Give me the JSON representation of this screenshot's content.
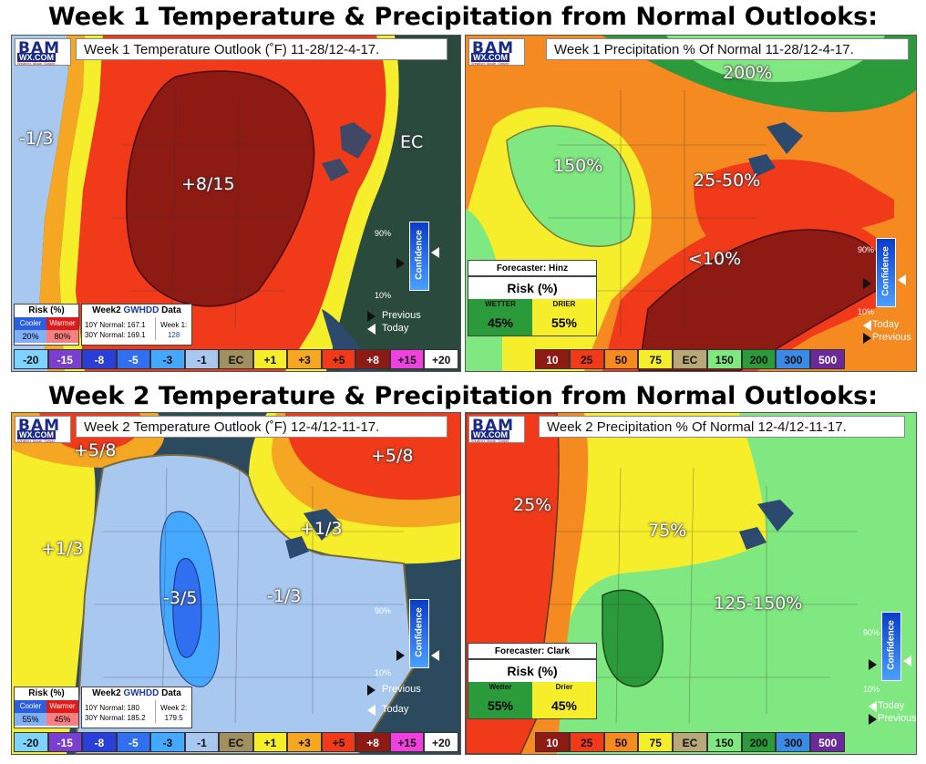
{
  "headings": {
    "week1": "Week 1 Temperature & Precipitation from Normal Outlooks:",
    "week2": "Week 2 Temperature & Precipitation from Normal Outlooks:"
  },
  "logo": {
    "bam": "BAM",
    "wx": "WX.COM",
    "tagline": "Weather. Made. Simple."
  },
  "panels": {
    "w1_temp": {
      "title": "Week 1 Temperature Outlook (˚F) 11-28/12-4-17.",
      "labels": [
        "-1/3",
        "+8/15",
        "EC"
      ],
      "risk": {
        "title": "Risk (%)",
        "cooler_label": "Cooler",
        "warmer_label": "Warmer",
        "cooler": "20%",
        "warmer": "80%"
      },
      "gwhdd": {
        "title_a": "Week2 ",
        "title_b": "GWHDD",
        "title_c": " Data",
        "normal10": "10Y Normal: 167.1",
        "normal30": "30Y Normal: 169.1",
        "week_label": "Week 1:",
        "week_value": "128"
      }
    },
    "w1_precip": {
      "title": "Week 1 Precipitation % Of Normal 11-28/12-4-17.",
      "labels": [
        "200%",
        "150%",
        "25-50%",
        "<10%"
      ],
      "forecaster": "Forecaster: Hinz",
      "risk_title": "Risk (%)",
      "wetter_label": "WETTER",
      "drier_label": "DRIER",
      "wetter": "45%",
      "drier": "55%"
    },
    "w2_temp": {
      "title": "Week 2 Temperature Outlook (˚F) 12-4/12-11-17.",
      "labels": [
        "+5/8",
        "+5/8",
        "+1/3",
        "+1/3",
        "-3/5",
        "-1/3"
      ],
      "risk": {
        "title": "Risk (%)",
        "cooler_label": "Cooler",
        "warmer_label": "Warmer",
        "cooler": "55%",
        "warmer": "45%"
      },
      "gwhdd": {
        "title_a": "Week2 ",
        "title_b": "GWHDD",
        "title_c": " Data",
        "normal10": "10Y Normal: 180",
        "normal30": "30Y Normal: 185.2",
        "week_label": "Week 2:",
        "week_value": "179.5"
      }
    },
    "w2_precip": {
      "title": "Week 2 Precipitation % Of Normal 12-4/12-11-17.",
      "labels": [
        "25%",
        "75%",
        "125-150%"
      ],
      "forecaster": "Forecaster: Clark",
      "risk_title": "Risk (%)",
      "wetter_label": "Wetter",
      "drier_label": "Drier",
      "wetter": "55%",
      "drier": "45%"
    }
  },
  "temp_legend": [
    {
      "t": "-20",
      "c": "#7fd4ff"
    },
    {
      "t": "-15",
      "c": "#7a3fd0"
    },
    {
      "t": "-8",
      "c": "#2a3fd8"
    },
    {
      "t": "-5",
      "c": "#2f6ff0"
    },
    {
      "t": "-3",
      "c": "#45a8ff"
    },
    {
      "t": "-1",
      "c": "#a8c8f0"
    },
    {
      "t": "EC",
      "c": "#a09060"
    },
    {
      "t": "+1",
      "c": "#f6ee2a"
    },
    {
      "t": "+3",
      "c": "#f5a623"
    },
    {
      "t": "+5",
      "c": "#f03a1a"
    },
    {
      "t": "+8",
      "c": "#8e1a14"
    },
    {
      "t": "+15",
      "c": "#f040e0"
    },
    {
      "t": "+20",
      "c": "#ffffff"
    }
  ],
  "precip_legend": [
    {
      "t": "10",
      "c": "#8e1a14"
    },
    {
      "t": "25",
      "c": "#f03a1a"
    },
    {
      "t": "50",
      "c": "#f58a20"
    },
    {
      "t": "75",
      "c": "#f6ee2a"
    },
    {
      "t": "EC",
      "c": "#b8a878"
    },
    {
      "t": "150",
      "c": "#80e880"
    },
    {
      "t": "200",
      "c": "#2a9a3a"
    },
    {
      "t": "300",
      "c": "#3a8ae8"
    },
    {
      "t": "500",
      "c": "#6a2a9a"
    }
  ],
  "confidence": {
    "label": "Confidence",
    "high": "90%",
    "low": "10%",
    "previous": "Previous",
    "today": "Today"
  }
}
